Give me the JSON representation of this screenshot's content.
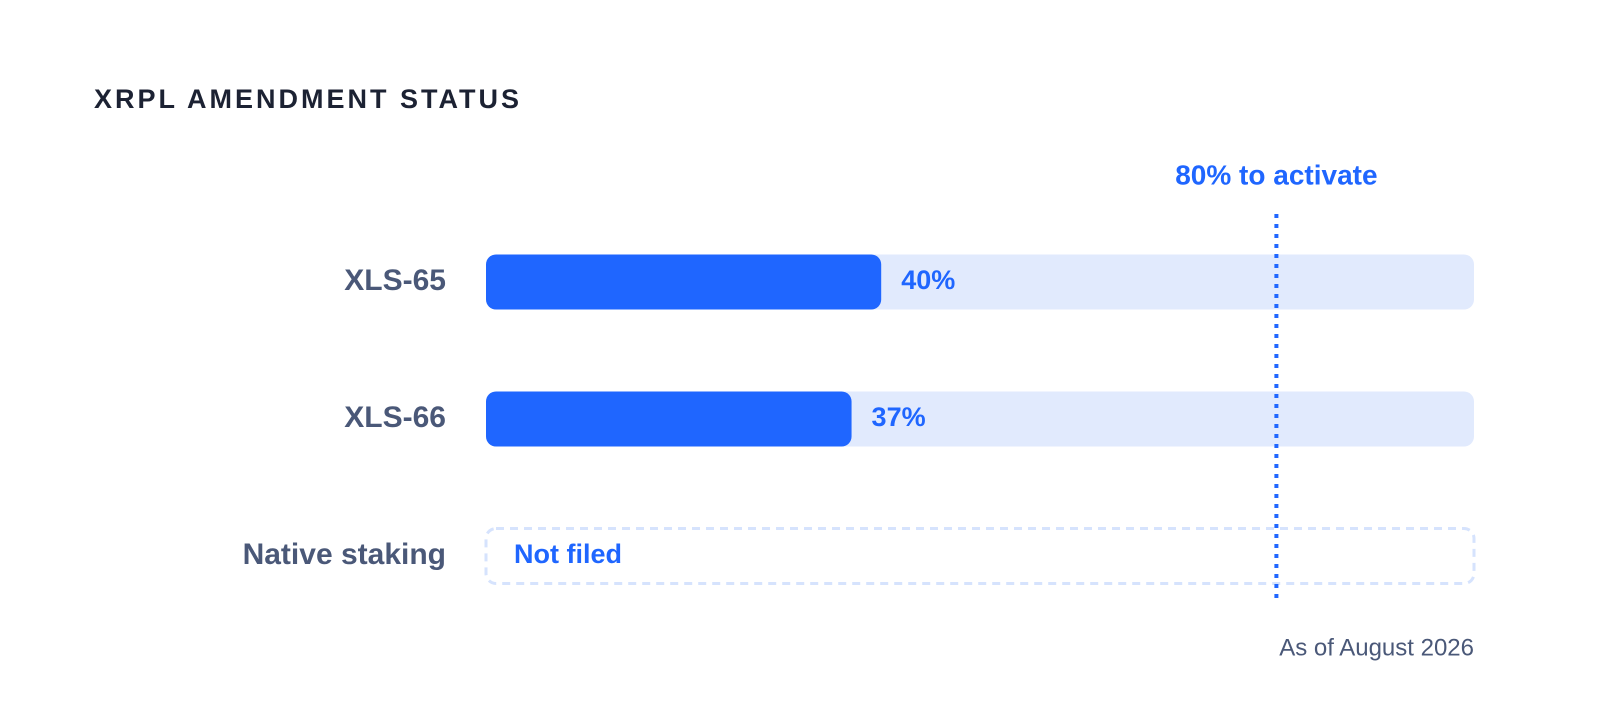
{
  "chart_data": {
    "type": "bar",
    "orientation": "horizontal",
    "title": "XRPL AMENDMENT STATUS",
    "categories": [
      "XLS-65",
      "XLS-66",
      "Native staking"
    ],
    "values": [
      40,
      37,
      null
    ],
    "value_labels": [
      "40%",
      "37%",
      "Not filed"
    ],
    "color": "#1f66ff",
    "xlim": [
      0,
      100
    ],
    "threshold": {
      "value": 80,
      "label": "80% to activate"
    },
    "footnote": "As of August 2026"
  }
}
